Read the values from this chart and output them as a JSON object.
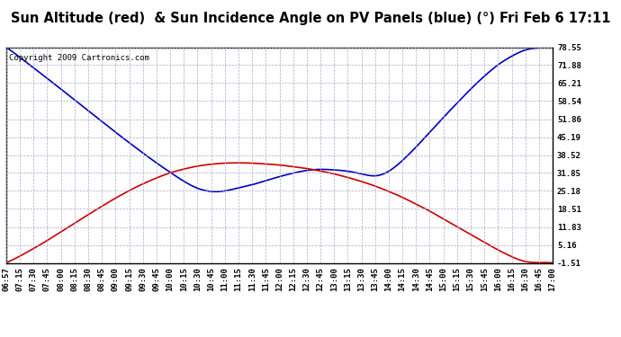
{
  "title": "Sun Altitude (red)  & Sun Incidence Angle on PV Panels (blue) (°) Fri Feb 6 17:11",
  "copyright_text": "Copyright 2009 Cartronics.com",
  "yticks": [
    78.55,
    71.88,
    65.21,
    58.54,
    51.86,
    45.19,
    38.52,
    31.85,
    25.18,
    18.51,
    11.83,
    5.16,
    -1.51
  ],
  "ymin": -1.51,
  "ymax": 78.55,
  "xtick_labels": [
    "06:57",
    "07:15",
    "07:30",
    "07:45",
    "08:00",
    "08:15",
    "08:30",
    "08:45",
    "09:00",
    "09:15",
    "09:30",
    "09:45",
    "10:00",
    "10:15",
    "10:30",
    "10:45",
    "11:00",
    "11:15",
    "11:30",
    "11:45",
    "12:00",
    "12:15",
    "12:30",
    "12:45",
    "13:00",
    "13:15",
    "13:30",
    "13:45",
    "14:00",
    "14:15",
    "14:30",
    "14:45",
    "15:00",
    "15:15",
    "15:30",
    "15:45",
    "16:00",
    "16:15",
    "16:30",
    "16:45",
    "17:00"
  ],
  "blue_y": [
    78.55,
    74.8,
    70.9,
    67.0,
    63.0,
    59.0,
    55.0,
    51.0,
    47.0,
    43.1,
    39.3,
    35.6,
    32.1,
    28.8,
    26.2,
    25.0,
    25.2,
    26.3,
    27.5,
    29.0,
    30.5,
    31.8,
    32.8,
    33.2,
    33.0,
    32.5,
    31.5,
    30.8,
    32.5,
    36.5,
    41.5,
    47.0,
    52.5,
    57.8,
    63.0,
    67.8,
    72.0,
    75.2,
    77.5,
    78.3,
    78.55
  ],
  "red_y": [
    -1.51,
    1.0,
    3.8,
    6.8,
    10.0,
    13.2,
    16.4,
    19.5,
    22.5,
    25.3,
    27.8,
    30.0,
    31.9,
    33.3,
    34.4,
    35.1,
    35.5,
    35.6,
    35.5,
    35.2,
    34.8,
    34.2,
    33.5,
    32.6,
    31.5,
    30.2,
    28.7,
    27.0,
    25.0,
    22.8,
    20.3,
    17.7,
    14.8,
    11.9,
    9.0,
    6.1,
    3.3,
    0.8,
    -1.0,
    -1.4,
    -1.51
  ],
  "line_color_blue": "#0000bb",
  "line_color_red": "#cc0000",
  "bg_color": "#ffffff",
  "plot_bg_color": "#ffffff",
  "grid_color": "#aaaacc",
  "title_fontsize": 10.5,
  "tick_fontsize": 6.5,
  "copyright_fontsize": 6.5,
  "linewidth": 1.2
}
